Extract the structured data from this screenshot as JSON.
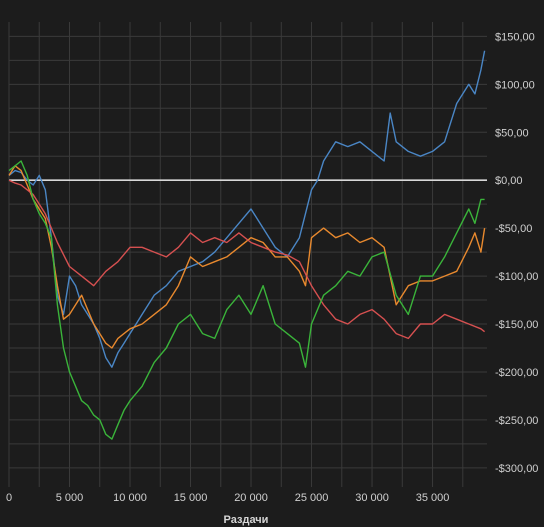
{
  "chart_data": {
    "type": "line",
    "xlabel": "Раздачи",
    "xlim": [
      0,
      39500
    ],
    "ylim": [
      -320,
      165
    ],
    "x_ticks": [
      0,
      5000,
      10000,
      15000,
      20000,
      25000,
      30000,
      35000
    ],
    "x_tick_labels": [
      "0",
      "5 000",
      "10 000",
      "15 000",
      "20 000",
      "25 000",
      "30 000",
      "35 000"
    ],
    "y_ticks": [
      150,
      100,
      50,
      0,
      -50,
      -100,
      -150,
      -200,
      -250,
      -300
    ],
    "y_tick_labels": [
      "$150,00",
      "$100,00",
      "$50,00",
      "$0,00",
      "-$50,00",
      "-$100,00",
      "-$150,00",
      "-$200,00",
      "-$250,00",
      "-$300,00"
    ],
    "grid": true,
    "series": [
      {
        "color": "#4a86c5",
        "x": [
          0,
          500,
          1000,
          1500,
          2000,
          2500,
          3000,
          3500,
          4000,
          4500,
          5000,
          5500,
          6000,
          6500,
          7000,
          7500,
          8000,
          8500,
          9000,
          9500,
          10000,
          10500,
          11000,
          12000,
          13000,
          14000,
          15000,
          16000,
          17000,
          18000,
          19000,
          20000,
          21000,
          22000,
          23000,
          24000,
          25000,
          25500,
          26000,
          27000,
          28000,
          29000,
          30000,
          31000,
          31500,
          32000,
          33000,
          34000,
          35000,
          36000,
          37000,
          38000,
          38500,
          39000,
          39300
        ],
        "y": [
          5,
          10,
          8,
          0,
          -5,
          5,
          -10,
          -60,
          -120,
          -140,
          -100,
          -110,
          -130,
          -140,
          -150,
          -165,
          -185,
          -195,
          -180,
          -170,
          -160,
          -150,
          -140,
          -120,
          -110,
          -95,
          -90,
          -85,
          -75,
          -60,
          -45,
          -30,
          -50,
          -70,
          -80,
          -60,
          -10,
          0,
          20,
          40,
          35,
          40,
          30,
          20,
          70,
          40,
          30,
          25,
          30,
          40,
          80,
          100,
          90,
          115,
          135
        ]
      },
      {
        "color": "#e8892e",
        "x": [
          0,
          500,
          1000,
          1500,
          2000,
          2500,
          3000,
          3500,
          4000,
          4500,
          5000,
          5500,
          6000,
          7000,
          8000,
          8500,
          9000,
          10000,
          11000,
          12000,
          13000,
          14000,
          15000,
          16000,
          17000,
          18000,
          19000,
          20000,
          21000,
          22000,
          23000,
          24000,
          24500,
          25000,
          26000,
          27000,
          28000,
          29000,
          30000,
          31000,
          32000,
          33000,
          34000,
          35000,
          36000,
          37000,
          38000,
          38500,
          39000,
          39300
        ],
        "y": [
          5,
          15,
          10,
          -5,
          -20,
          -30,
          -40,
          -70,
          -110,
          -145,
          -140,
          -130,
          -120,
          -150,
          -170,
          -175,
          -165,
          -155,
          -150,
          -140,
          -130,
          -110,
          -80,
          -90,
          -85,
          -80,
          -70,
          -60,
          -65,
          -80,
          -80,
          -95,
          -110,
          -60,
          -50,
          -60,
          -55,
          -65,
          -60,
          -70,
          -130,
          -110,
          -105,
          -105,
          -100,
          -95,
          -70,
          -55,
          -75,
          -50
        ]
      },
      {
        "color": "#d65050",
        "x": [
          0,
          500,
          1000,
          1500,
          2000,
          2500,
          3000,
          3500,
          4000,
          5000,
          6000,
          7000,
          8000,
          9000,
          10000,
          11000,
          12000,
          13000,
          14000,
          15000,
          16000,
          17000,
          18000,
          19000,
          20000,
          21000,
          22000,
          23000,
          24000,
          25000,
          26000,
          27000,
          28000,
          29000,
          30000,
          31000,
          32000,
          33000,
          34000,
          35000,
          36000,
          37000,
          38000,
          39000,
          39300
        ],
        "y": [
          0,
          -3,
          -5,
          -10,
          -15,
          -25,
          -35,
          -50,
          -65,
          -90,
          -100,
          -110,
          -95,
          -85,
          -70,
          -70,
          -75,
          -80,
          -70,
          -55,
          -65,
          -60,
          -65,
          -55,
          -65,
          -70,
          -75,
          -78,
          -85,
          -110,
          -130,
          -145,
          -150,
          -140,
          -135,
          -145,
          -160,
          -165,
          -150,
          -150,
          -140,
          -145,
          -150,
          -155,
          -158
        ]
      },
      {
        "color": "#3ab43a",
        "x": [
          0,
          500,
          1000,
          1500,
          2000,
          2500,
          3000,
          3500,
          4000,
          4500,
          5000,
          5500,
          6000,
          6500,
          7000,
          7500,
          8000,
          8500,
          9000,
          9500,
          10000,
          11000,
          12000,
          13000,
          14000,
          15000,
          16000,
          17000,
          18000,
          19000,
          20000,
          21000,
          22000,
          23000,
          24000,
          24500,
          25000,
          26000,
          27000,
          28000,
          29000,
          30000,
          31000,
          32000,
          33000,
          34000,
          35000,
          36000,
          37000,
          38000,
          38500,
          39000,
          39300
        ],
        "y": [
          10,
          15,
          20,
          5,
          -20,
          -35,
          -45,
          -60,
          -130,
          -175,
          -200,
          -215,
          -230,
          -235,
          -245,
          -250,
          -265,
          -270,
          -255,
          -240,
          -230,
          -215,
          -190,
          -175,
          -150,
          -140,
          -160,
          -165,
          -135,
          -120,
          -140,
          -110,
          -150,
          -160,
          -170,
          -195,
          -150,
          -120,
          -110,
          -95,
          -100,
          -80,
          -75,
          -120,
          -140,
          -100,
          -100,
          -80,
          -55,
          -30,
          -45,
          -20,
          -20
        ]
      }
    ]
  }
}
